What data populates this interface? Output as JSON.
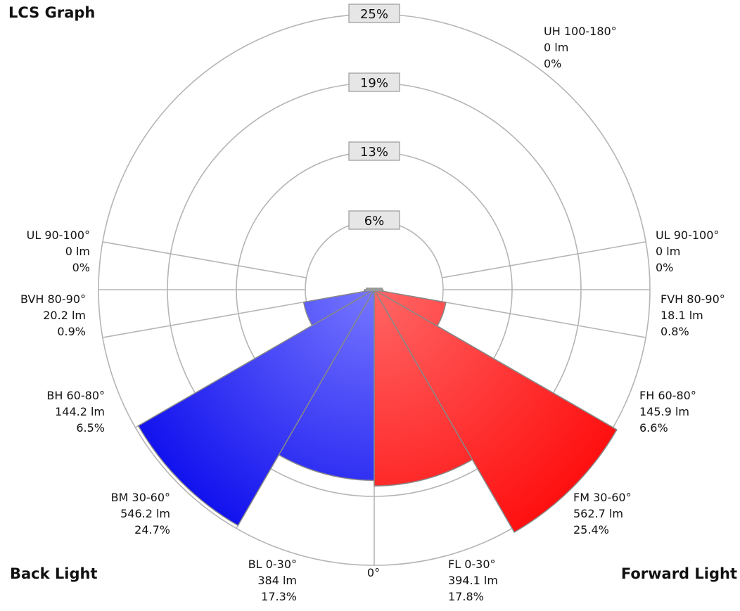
{
  "title": "LCS Graph",
  "back_label": "Back Light",
  "forward_label": "Forward Light",
  "zero_label": "0°",
  "colors": {
    "forward_light": "#ff6666",
    "forward_dark": "#ff1111",
    "back_light": "#7777ff",
    "back_dark": "#1111ee",
    "grid": "#b5b5b5",
    "box_fill": "#e6e6e6",
    "box_stroke": "#999999"
  },
  "chart_data": {
    "type": "polar-bar",
    "title": "LCS Graph",
    "radial_max": 25,
    "ring_labels": [
      "6%",
      "13%",
      "19%",
      "25%"
    ],
    "ring_values": [
      6.25,
      12.5,
      18.75,
      25
    ],
    "segments": [
      {
        "side": "forward",
        "zone": "FL",
        "label": "FL 0-30°",
        "lumens": "394.1 lm",
        "percent_text": "17.8%",
        "percent": 17.8,
        "angle_start": 0,
        "angle_end": 30
      },
      {
        "side": "forward",
        "zone": "FM",
        "label": "FM 30-60°",
        "lumens": "562.7 lm",
        "percent_text": "25.4%",
        "percent": 25.4,
        "angle_start": 30,
        "angle_end": 60
      },
      {
        "side": "forward",
        "zone": "FH",
        "label": "FH 60-80°",
        "lumens": "145.9 lm",
        "percent_text": "6.6%",
        "percent": 6.6,
        "angle_start": 60,
        "angle_end": 80
      },
      {
        "side": "forward",
        "zone": "FVH",
        "label": "FVH 80-90°",
        "lumens": "18.1 lm",
        "percent_text": "0.8%",
        "percent": 0.8,
        "angle_start": 80,
        "angle_end": 90
      },
      {
        "side": "forward",
        "zone": "UL",
        "label": "UL 90-100°",
        "lumens": "0 lm",
        "percent_text": "0%",
        "percent": 0,
        "angle_start": 90,
        "angle_end": 100
      },
      {
        "side": "back",
        "zone": "BL",
        "label": "BL 0-30°",
        "lumens": "384 lm",
        "percent_text": "17.3%",
        "percent": 17.3,
        "angle_start": 0,
        "angle_end": 30
      },
      {
        "side": "back",
        "zone": "BM",
        "label": "BM 30-60°",
        "lumens": "546.2 lm",
        "percent_text": "24.7%",
        "percent": 24.7,
        "angle_start": 30,
        "angle_end": 60
      },
      {
        "side": "back",
        "zone": "BH",
        "label": "BH 60-80°",
        "lumens": "144.2 lm",
        "percent_text": "6.5%",
        "percent": 6.5,
        "angle_start": 60,
        "angle_end": 80
      },
      {
        "side": "back",
        "zone": "BVH",
        "label": "BVH 80-90°",
        "lumens": "20.2 lm",
        "percent_text": "0.9%",
        "percent": 0.9,
        "angle_start": 80,
        "angle_end": 90
      },
      {
        "side": "back",
        "zone": "UL",
        "label": "UL 90-100°",
        "lumens": "0 lm",
        "percent_text": "0%",
        "percent": 0,
        "angle_start": 90,
        "angle_end": 100
      },
      {
        "side": "up",
        "zone": "UH",
        "label": "UH 100-180°",
        "lumens": "0 lm",
        "percent_text": "0%",
        "percent": 0,
        "angle_start": 100,
        "angle_end": 180
      }
    ]
  }
}
